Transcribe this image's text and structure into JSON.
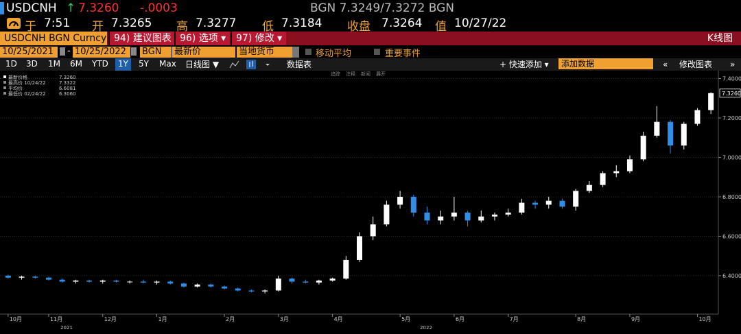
{
  "header": {
    "ticker": "USDCNH",
    "arrow": "↑",
    "last": "7.3260",
    "change": "-.0003",
    "quote": "BGN 7.3249/7.3272 BGN",
    "time_label": "于",
    "time": "7:51",
    "open_label": "开",
    "open": "7.3265",
    "high_label": "高",
    "high": "7.3277",
    "low_label": "低",
    "low": "7.3184",
    "close_label": "收盘",
    "close": "7.3264",
    "date_label": "值",
    "date": "10/27/22"
  },
  "menu": {
    "security": "USDCNH BGN Curncy",
    "items": [
      "94) 建议图表",
      "96) 选项 ▾",
      "97) 修改 ▾"
    ],
    "chart_kind": "K线图"
  },
  "settings": {
    "start": "10/25/2021",
    "sep": "-",
    "end": "10/25/2022",
    "source": "BGN",
    "field": "最新价",
    "currency": "当地货币",
    "moving_average": "移动平均",
    "events": "重要事件"
  },
  "ranges": {
    "items": [
      "1D",
      "3D",
      "1M",
      "6M",
      "YTD",
      "1Y",
      "5Y",
      "Max"
    ],
    "selected": 5
  },
  "toolbar": {
    "frequency": "日线图 ▼",
    "table": "数据表",
    "quick_add": "+ 快速添加 ▾",
    "add_data": "添加数据",
    "prev": "«",
    "edit_chart": "修改图表",
    "next": "»"
  },
  "chart_tools": [
    "追踪",
    "注释",
    "新闻",
    "展开"
  ],
  "legend": [
    {
      "label": "最新价格",
      "value": "7.3260"
    },
    {
      "label": "最高价 10/24/22",
      "value": "7.3322"
    },
    {
      "label": "平均价",
      "value": "6.6081"
    },
    {
      "label": "最低价 02/24/22",
      "value": "6.3060"
    }
  ],
  "chart_data": {
    "type": "candlestick",
    "categories": [
      "10月",
      null,
      null,
      "11月",
      null,
      null,
      null,
      "12月",
      null,
      null,
      null,
      "1月",
      null,
      null,
      null,
      null,
      "2月",
      null,
      null,
      null,
      "3月",
      null,
      null,
      null,
      "4月",
      null,
      null,
      null,
      null,
      "5月",
      null,
      null,
      null,
      "6月",
      null,
      null,
      null,
      "7月",
      null,
      null,
      null,
      null,
      "8月",
      null,
      null,
      null,
      "9月",
      null,
      null,
      null,
      null,
      "10月",
      null
    ],
    "annotations": [
      "2021",
      "2022"
    ],
    "open": [
      6.4,
      6.39,
      6.395,
      6.39,
      6.38,
      6.37,
      6.375,
      6.37,
      6.375,
      6.37,
      6.37,
      6.365,
      6.37,
      6.36,
      6.345,
      6.355,
      6.345,
      6.335,
      6.325,
      6.32,
      6.325,
      6.385,
      6.37,
      6.365,
      6.375,
      6.385,
      6.48,
      6.6,
      6.66,
      6.76,
      6.8,
      6.72,
      6.68,
      6.7,
      6.72,
      6.68,
      6.7,
      6.71,
      6.72,
      6.77,
      6.76,
      6.78,
      6.75,
      6.83,
      6.86,
      6.92,
      6.93,
      6.99,
      7.11,
      7.18,
      7.06,
      7.17,
      7.24
    ],
    "high": [
      6.405,
      6.4,
      6.4,
      6.395,
      6.385,
      6.38,
      6.38,
      6.38,
      6.38,
      6.375,
      6.38,
      6.375,
      6.375,
      6.365,
      6.36,
      6.36,
      6.35,
      6.34,
      6.33,
      6.33,
      6.4,
      6.39,
      6.38,
      6.38,
      6.39,
      6.5,
      6.62,
      6.7,
      6.78,
      6.83,
      6.81,
      6.75,
      6.73,
      6.8,
      6.73,
      6.73,
      6.72,
      6.74,
      6.79,
      6.78,
      6.8,
      6.79,
      6.84,
      6.88,
      6.93,
      6.96,
      7.01,
      7.13,
      7.26,
      7.19,
      7.18,
      7.25,
      7.33
    ],
    "low": [
      6.385,
      6.38,
      6.385,
      6.375,
      6.365,
      6.36,
      6.365,
      6.36,
      6.365,
      6.36,
      6.36,
      6.355,
      6.355,
      6.34,
      6.34,
      6.34,
      6.33,
      6.32,
      6.315,
      6.31,
      6.32,
      6.36,
      6.36,
      6.355,
      6.37,
      6.38,
      6.47,
      6.58,
      6.65,
      6.74,
      6.7,
      6.66,
      6.66,
      6.68,
      6.65,
      6.67,
      6.68,
      6.7,
      6.71,
      6.74,
      6.74,
      6.74,
      6.73,
      6.82,
      6.85,
      6.9,
      6.92,
      6.98,
      7.1,
      7.02,
      7.04,
      7.16,
      7.22
    ],
    "close": [
      6.39,
      6.395,
      6.39,
      6.38,
      6.37,
      6.375,
      6.37,
      6.375,
      6.37,
      6.37,
      6.365,
      6.37,
      6.36,
      6.345,
      6.355,
      6.345,
      6.335,
      6.325,
      6.32,
      6.325,
      6.385,
      6.37,
      6.365,
      6.375,
      6.385,
      6.48,
      6.6,
      6.66,
      6.76,
      6.8,
      6.72,
      6.68,
      6.7,
      6.72,
      6.68,
      6.7,
      6.71,
      6.72,
      6.77,
      6.76,
      6.78,
      6.75,
      6.83,
      6.86,
      6.92,
      6.93,
      6.99,
      7.11,
      7.18,
      7.06,
      7.17,
      7.24,
      7.326
    ],
    "up_color": "#ffffff",
    "down_color": "#2f8fe8",
    "last_price": {
      "value": 7.326,
      "label": "7.3260"
    },
    "ylim": [
      6.205,
      7.44
    ],
    "yticks": [
      {
        "value": 6.4,
        "label": "6.4000"
      },
      {
        "value": 6.6,
        "label": "6.6000"
      },
      {
        "value": 6.8,
        "label": "6.8000"
      },
      {
        "value": 7.0,
        "label": "7.0000"
      },
      {
        "value": 7.2,
        "label": "7.2000"
      },
      {
        "value": 7.4,
        "label": "7.4000"
      }
    ],
    "grid": true
  }
}
